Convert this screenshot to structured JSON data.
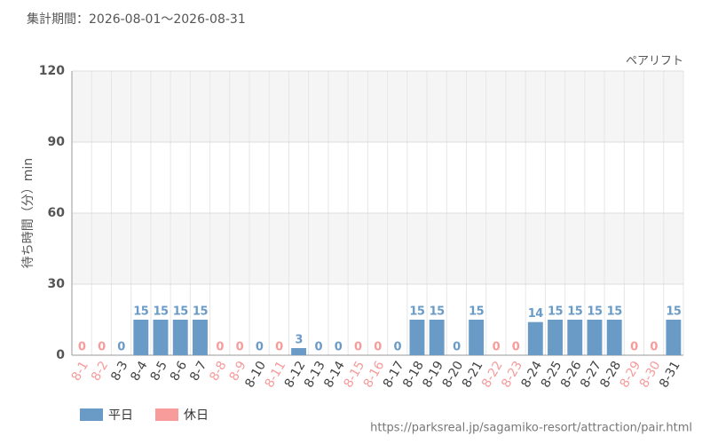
{
  "chart_data": {
    "type": "bar",
    "title": "集計期間：2026-08-01～2026-08-31",
    "subtitle": "ペアリフト",
    "y_label": "待ち時間（分）min",
    "source": "https://parksreal.jp/sagamiko-resort/attraction/pair.html",
    "categories": [
      "8-1",
      "8-2",
      "8-3",
      "8-4",
      "8-5",
      "8-6",
      "8-7",
      "8-8",
      "8-9",
      "8-10",
      "8-11",
      "8-12",
      "8-13",
      "8-14",
      "8-15",
      "8-16",
      "8-17",
      "8-18",
      "8-19",
      "8-20",
      "8-21",
      "8-22",
      "8-23",
      "8-24",
      "8-25",
      "8-26",
      "8-27",
      "8-28",
      "8-29",
      "8-30",
      "8-31"
    ],
    "series": [
      {
        "name": "平日",
        "color": "#6a9bc6",
        "values": [
          null,
          null,
          0,
          15,
          15,
          15,
          15,
          null,
          null,
          0,
          null,
          3,
          0,
          0,
          null,
          null,
          0,
          15,
          15,
          0,
          15,
          null,
          null,
          14,
          15,
          15,
          15,
          15,
          null,
          null,
          15
        ]
      },
      {
        "name": "休日",
        "color": "#f79b9b",
        "values": [
          0,
          0,
          null,
          null,
          null,
          null,
          null,
          0,
          0,
          null,
          0,
          null,
          null,
          null,
          0,
          0,
          null,
          null,
          null,
          null,
          null,
          0,
          0,
          null,
          null,
          null,
          null,
          null,
          0,
          0,
          null
        ]
      }
    ],
    "ylim": [
      0,
      120
    ],
    "yticks": [
      0,
      30,
      60,
      90,
      120
    ],
    "grid": true,
    "legend": "bottom-left"
  }
}
